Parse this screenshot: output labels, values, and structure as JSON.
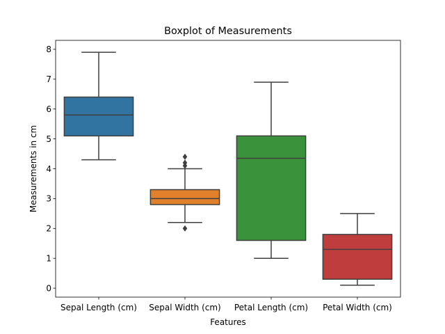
{
  "chart_data": {
    "type": "boxplot",
    "title": "Boxplot of Measurements",
    "xlabel": "Features",
    "ylabel": "Measurements in cm",
    "ylim": [
      -0.3,
      8.3
    ],
    "yticks": [
      0,
      1,
      2,
      3,
      4,
      5,
      6,
      7,
      8
    ],
    "grid": false,
    "categories": [
      "Sepal Length (cm)",
      "Sepal Width (cm)",
      "Petal Length (cm)",
      "Petal Width (cm)"
    ],
    "boxes": [
      {
        "name": "Sepal Length (cm)",
        "whisker_low": 4.3,
        "q1": 5.1,
        "median": 5.8,
        "q3": 6.4,
        "whisker_high": 7.9,
        "outliers": [],
        "color": "#3274a1"
      },
      {
        "name": "Sepal Width (cm)",
        "whisker_low": 2.2,
        "q1": 2.8,
        "median": 3.0,
        "q3": 3.3,
        "whisker_high": 4.0,
        "outliers": [
          4.1,
          4.2,
          4.4,
          2.0
        ],
        "color": "#e1812c"
      },
      {
        "name": "Petal Length (cm)",
        "whisker_low": 1.0,
        "q1": 1.6,
        "median": 4.35,
        "q3": 5.1,
        "whisker_high": 6.9,
        "outliers": [],
        "color": "#3a923a"
      },
      {
        "name": "Petal Width (cm)",
        "whisker_low": 0.1,
        "q1": 0.3,
        "median": 1.3,
        "q3": 1.8,
        "whisker_high": 2.5,
        "outliers": [],
        "color": "#c03d3e"
      }
    ]
  }
}
